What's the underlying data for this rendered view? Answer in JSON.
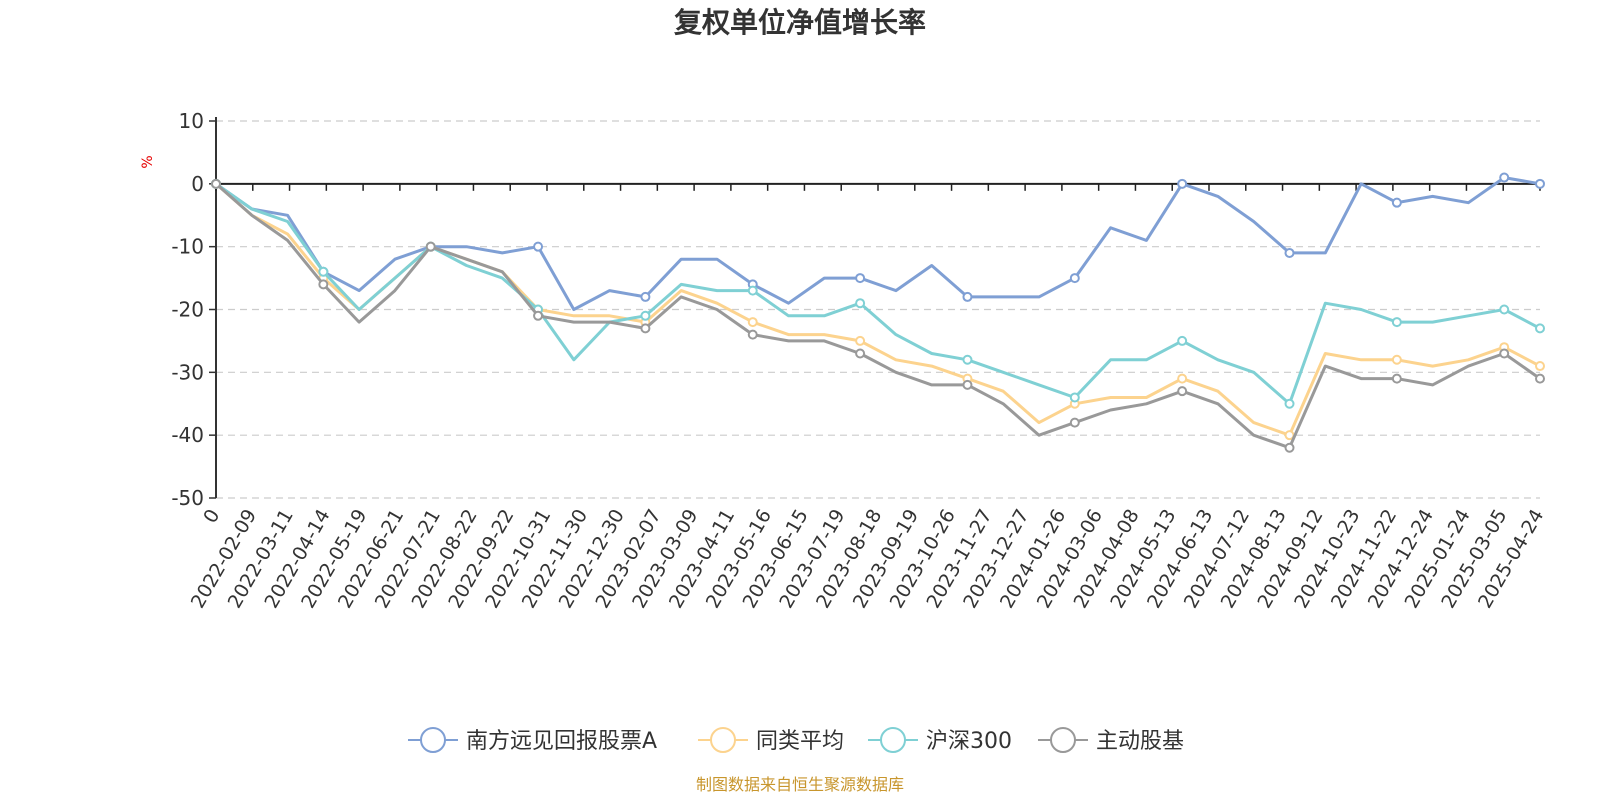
{
  "chart_data": {
    "type": "line",
    "title": "复权单位净值增长率",
    "ylabel": "%",
    "ylim": [
      -50,
      10
    ],
    "yticks": [
      "10",
      "0",
      "-10",
      "-20",
      "-30",
      "-40",
      "-50"
    ],
    "x_tick_labels": [
      "0",
      "2022-02-09",
      "2022-03-11",
      "2022-04-14",
      "2022-05-19",
      "2022-06-21",
      "2022-07-21",
      "2022-08-22",
      "2022-09-22",
      "2022-10-31",
      "2022-11-30",
      "2022-12-30",
      "2023-02-07",
      "2023-03-09",
      "2023-04-11",
      "2023-05-16",
      "2023-06-15",
      "2023-07-19",
      "2023-08-18",
      "2023-09-19",
      "2023-10-26",
      "2023-11-27",
      "2023-12-27",
      "2024-01-26",
      "2024-03-06",
      "2024-04-08",
      "2024-05-13",
      "2024-06-13",
      "2024-07-12",
      "2024-08-13",
      "2024-09-12",
      "2024-10-23",
      "2024-11-22",
      "2024-12-24",
      "2025-01-24",
      "2025-03-05",
      "2025-04-24"
    ],
    "grid": true,
    "legend_position": "bottom",
    "source_note": "制图数据来自恒生聚源数据库",
    "series": [
      {
        "name": "南方远见回报股票A",
        "color": "#7f9fd4",
        "values": [
          0,
          -4,
          -5,
          -14,
          -17,
          -12,
          -10,
          -10,
          -11,
          -10,
          -20,
          -17,
          -18,
          -12,
          -12,
          -16,
          -19,
          -15,
          -15,
          -17,
          -13,
          -18,
          -18,
          -18,
          -15,
          -7,
          -9,
          0,
          -2,
          -6,
          -11,
          -11,
          0,
          -3,
          -2,
          -3,
          1,
          0
        ]
      },
      {
        "name": "同类平均",
        "color": "#fcd38e",
        "values": [
          0,
          -5,
          -8,
          -15,
          -20,
          -15,
          -10,
          -12,
          -14,
          -20,
          -21,
          -21,
          -22,
          -17,
          -19,
          -22,
          -24,
          -24,
          -25,
          -28,
          -29,
          -31,
          -33,
          -38,
          -35,
          -34,
          -34,
          -31,
          -33,
          -38,
          -40,
          -27,
          -28,
          -28,
          -29,
          -28,
          -26,
          -29
        ]
      },
      {
        "name": "沪深300",
        "color": "#7fd0d4",
        "values": [
          0,
          -4,
          -6,
          -14,
          -20,
          -15,
          -10,
          -13,
          -15,
          -20,
          -28,
          -22,
          -21,
          -16,
          -17,
          -17,
          -21,
          -21,
          -19,
          -24,
          -27,
          -28,
          -30,
          -32,
          -34,
          -28,
          -28,
          -25,
          -28,
          -30,
          -35,
          -19,
          -20,
          -22,
          -22,
          -21,
          -20,
          -23
        ]
      },
      {
        "name": "主动股基",
        "color": "#999999",
        "values": [
          0,
          -5,
          -9,
          -16,
          -22,
          -17,
          -10,
          -12,
          -14,
          -21,
          -22,
          -22,
          -23,
          -18,
          -20,
          -24,
          -25,
          -25,
          -27,
          -30,
          -32,
          -32,
          -35,
          -40,
          -38,
          -36,
          -35,
          -33,
          -35,
          -40,
          -42,
          -29,
          -31,
          -31,
          -32,
          -29,
          -27,
          -31
        ]
      }
    ]
  }
}
